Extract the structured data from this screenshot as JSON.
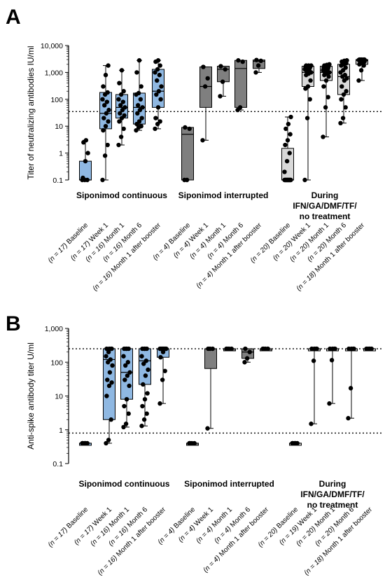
{
  "colors": {
    "siponimod_continuous": "#8fb8e2",
    "siponimod_interrupted": "#7f7f7f",
    "other": "#d9d9d9",
    "stroke": "#000000"
  },
  "chart_data": [
    {
      "type": "box",
      "panel": "A",
      "ylabel": "Titer of neutralizing antibodies IU/ml",
      "yscale": "log",
      "ylim": [
        0.1,
        10000
      ],
      "yticks": [
        "0.1",
        "1",
        "10",
        "100",
        "1,000",
        "10,000"
      ],
      "reference_lines": [
        35
      ],
      "groups": [
        {
          "label": [
            "Siponimod continuous"
          ],
          "color_key": "siponimod_continuous"
        },
        {
          "label": [
            "Siponimod interrupted"
          ],
          "color_key": "siponimod_interrupted"
        },
        {
          "label": [
            "During",
            "IFN/GA/DMF/TF/",
            "no treatment"
          ],
          "color_key": "other"
        }
      ],
      "categories": [
        {
          "group": 0,
          "name": "Baseline",
          "n": "(n = 17)",
          "box": [
            0.1,
            0.1,
            0.1,
            0.5,
            3
          ],
          "points": [
            0.1,
            0.1,
            0.1,
            0.12,
            0.5,
            1,
            2.5,
            3
          ]
        },
        {
          "group": 0,
          "name": "Week 1",
          "n": "(n = 17)",
          "box": [
            0.1,
            8,
            30,
            180,
            1800
          ],
          "points": [
            0.1,
            0.8,
            2,
            7,
            10,
            15,
            20,
            30,
            40,
            60,
            80,
            100,
            150,
            180,
            300,
            800,
            1800
          ]
        },
        {
          "group": 0,
          "name": "Month 1",
          "n": "(n = 16)",
          "box": [
            2,
            20,
            50,
            150,
            1200
          ],
          "points": [
            2,
            4,
            8,
            15,
            20,
            25,
            30,
            40,
            50,
            60,
            80,
            100,
            150,
            200,
            400,
            1200
          ]
        },
        {
          "group": 0,
          "name": "Month 6",
          "n": "(n = 16)",
          "box": [
            7,
            12,
            50,
            170,
            2800
          ],
          "points": [
            7,
            9,
            10,
            12,
            15,
            20,
            30,
            40,
            50,
            60,
            100,
            150,
            170,
            300,
            1000,
            2800
          ]
        },
        {
          "group": 0,
          "name": "Month 1 after booster",
          "n": "(n = 16)",
          "box": [
            8,
            50,
            200,
            1300,
            2800
          ],
          "points": [
            8,
            12,
            15,
            20,
            50,
            100,
            150,
            200,
            300,
            500,
            800,
            1000,
            1300,
            1800,
            2500,
            2800
          ]
        },
        {
          "group": 1,
          "name": "Baseline",
          "n": "(n = 4)",
          "box": [
            0.1,
            0.1,
            5,
            9,
            9
          ],
          "points": [
            0.1,
            0.1,
            8,
            9
          ]
        },
        {
          "group": 1,
          "name": "Week 1",
          "n": "(n = 4)",
          "box": [
            3,
            50,
            300,
            1600,
            1600
          ],
          "points": [
            3,
            300,
            600,
            1600
          ]
        },
        {
          "group": 1,
          "name": "Month 1",
          "n": "(n = 4)",
          "box": [
            130,
            450,
            1300,
            1700,
            1700
          ],
          "points": [
            130,
            450,
            1300,
            1700
          ]
        },
        {
          "group": 1,
          "name": "Month 6",
          "n": "(n = 4)",
          "box": [
            40,
            50,
            1400,
            2800,
            2800
          ],
          "points": [
            40,
            50,
            2500,
            2800
          ]
        },
        {
          "group": 1,
          "name": "Month 1 after booster",
          "n": "(n = 4)",
          "box": [
            1000,
            1400,
            2600,
            2900,
            2900
          ],
          "points": [
            1000,
            1800,
            2700,
            2900
          ]
        },
        {
          "group": 2,
          "name": "Baseline",
          "n": "(n = 20)",
          "box": [
            0.1,
            0.1,
            0.1,
            1.5,
            22
          ],
          "points": [
            0.1,
            0.1,
            0.1,
            0.1,
            0.1,
            0.1,
            0.1,
            0.1,
            0.1,
            0.1,
            0.1,
            0.2,
            0.5,
            1,
            2,
            3,
            5,
            8,
            12,
            22
          ]
        },
        {
          "group": 2,
          "name": "Week 1",
          "n": "(n = 20)",
          "box": [
            0.1,
            300,
            1000,
            1700,
            1800
          ],
          "points": [
            0.1,
            20,
            100,
            250,
            300,
            500,
            800,
            900,
            1000,
            1100,
            1200,
            1300,
            1400,
            1500,
            1600,
            1700,
            1700,
            1800,
            1800,
            1800
          ]
        },
        {
          "group": 2,
          "name": "Month 1",
          "n": "(n = 20)",
          "box": [
            4,
            500,
            1000,
            1700,
            2000
          ],
          "points": [
            4,
            50,
            120,
            300,
            500,
            700,
            800,
            900,
            1000,
            1000,
            1100,
            1200,
            1300,
            1400,
            1500,
            1600,
            1700,
            1800,
            1900,
            2000
          ]
        },
        {
          "group": 2,
          "name": "Month 6",
          "n": "(n = 20)",
          "box": [
            13,
            150,
            700,
            2000,
            2800
          ],
          "points": [
            13,
            20,
            50,
            100,
            150,
            200,
            300,
            500,
            600,
            700,
            800,
            1000,
            1200,
            1500,
            1800,
            2000,
            2200,
            2500,
            2700,
            2800
          ]
        },
        {
          "group": 2,
          "name": "Month 1 after booster",
          "n": "(n = 18)",
          "box": [
            500,
            2000,
            2800,
            3000,
            3000
          ],
          "points": [
            500,
            1200,
            1800,
            2000,
            2200,
            2500,
            2600,
            2700,
            2800,
            2800,
            2900,
            2900,
            3000,
            3000,
            3000,
            3000,
            3000,
            3000
          ]
        }
      ]
    },
    {
      "type": "box",
      "panel": "B",
      "ylabel": "Anti-spike antibody titer U/ml",
      "yscale": "log",
      "ylim": [
        0.1,
        1000
      ],
      "yticks": [
        "0.1",
        "1",
        "10",
        "100",
        "1,000"
      ],
      "reference_lines": [
        250,
        0.8
      ],
      "groups": [
        {
          "label": [
            "Siponimod continuous"
          ],
          "color_key": "siponimod_continuous"
        },
        {
          "label": [
            "Siponimod interrupted"
          ],
          "color_key": "siponimod_interrupted"
        },
        {
          "label": [
            "During",
            "IFN/GA/DMF/TF/",
            "no treatment"
          ],
          "color_key": "other"
        }
      ],
      "categories": [
        {
          "group": 0,
          "name": "Baseline",
          "n": "(n = 17)",
          "box": [
            0.4,
            0.4,
            0.4,
            0.4,
            0.4
          ],
          "points": [
            0.4,
            0.4,
            0.4,
            0.4,
            0.4
          ]
        },
        {
          "group": 0,
          "name": "Week 1",
          "n": "(n = 17)",
          "box": [
            0.4,
            2,
            120,
            250,
            250
          ],
          "points": [
            0.4,
            0.5,
            2,
            10,
            20,
            25,
            30,
            50,
            80,
            100,
            120,
            150,
            200,
            250,
            250,
            250,
            250
          ]
        },
        {
          "group": 0,
          "name": "Month 1",
          "n": "(n = 16)",
          "box": [
            1.2,
            8,
            50,
            250,
            250
          ],
          "points": [
            1.2,
            1.5,
            3,
            5,
            8,
            20,
            30,
            40,
            50,
            80,
            100,
            150,
            250,
            250,
            250,
            250
          ]
        },
        {
          "group": 0,
          "name": "Month 6",
          "n": "(n = 16)",
          "box": [
            1.3,
            22,
            110,
            250,
            250
          ],
          "points": [
            1.3,
            2,
            3,
            5,
            8,
            12,
            22,
            40,
            60,
            90,
            110,
            150,
            250,
            250,
            250,
            250
          ]
        },
        {
          "group": 0,
          "name": "Month 1 after booster",
          "n": "(n = 16)",
          "box": [
            6,
            140,
            250,
            250,
            250
          ],
          "points": [
            6,
            30,
            55,
            140,
            200,
            250,
            250,
            250,
            250,
            250,
            250,
            250,
            250,
            250,
            250,
            250
          ]
        },
        {
          "group": 1,
          "name": "Baseline",
          "n": "(n = 4)",
          "box": [
            0.4,
            0.4,
            0.4,
            0.4,
            0.4
          ],
          "points": [
            0.4,
            0.4,
            0.4,
            0.4
          ]
        },
        {
          "group": 1,
          "name": "Week 1",
          "n": "(n = 4)",
          "box": [
            1.1,
            65,
            250,
            250,
            250
          ],
          "points": [
            1.1,
            250,
            250,
            250
          ]
        },
        {
          "group": 1,
          "name": "Month 1",
          "n": "(n = 4)",
          "box": [
            250,
            250,
            250,
            250,
            250
          ],
          "points": [
            250,
            250,
            250,
            250
          ]
        },
        {
          "group": 1,
          "name": "Month 6",
          "n": "(n = 4)",
          "box": [
            100,
            130,
            200,
            250,
            250
          ],
          "points": [
            100,
            130,
            200,
            250
          ]
        },
        {
          "group": 1,
          "name": "Month 1 after booster",
          "n": "(n = 4)",
          "box": [
            250,
            250,
            250,
            250,
            250
          ],
          "points": [
            250,
            250,
            250,
            250
          ]
        },
        {
          "group": 2,
          "name": "Baseline",
          "n": "(n = 20)",
          "box": [
            0.4,
            0.4,
            0.4,
            0.4,
            0.4
          ],
          "points": [
            0.4,
            0.4,
            0.4,
            0.4,
            0.4
          ]
        },
        {
          "group": 2,
          "name": "Week 1",
          "n": "(n = 19)",
          "box": [
            1.5,
            250,
            250,
            250,
            250
          ],
          "points": [
            1.5,
            110,
            250,
            250,
            250,
            250
          ]
        },
        {
          "group": 2,
          "name": "Month 1",
          "n": "(n = 20)",
          "box": [
            6,
            250,
            250,
            250,
            250
          ],
          "points": [
            6,
            115,
            250,
            250,
            250,
            250
          ]
        },
        {
          "group": 2,
          "name": "Month 6",
          "n": "(n = 20)",
          "box": [
            2.2,
            250,
            250,
            250,
            250
          ],
          "points": [
            2.2,
            17,
            250,
            250,
            250,
            250
          ]
        },
        {
          "group": 2,
          "name": "Month 1 after booster",
          "n": "(n = 18)",
          "box": [
            250,
            250,
            250,
            250,
            250
          ],
          "points": [
            250,
            250,
            250,
            250,
            250
          ]
        }
      ]
    }
  ]
}
